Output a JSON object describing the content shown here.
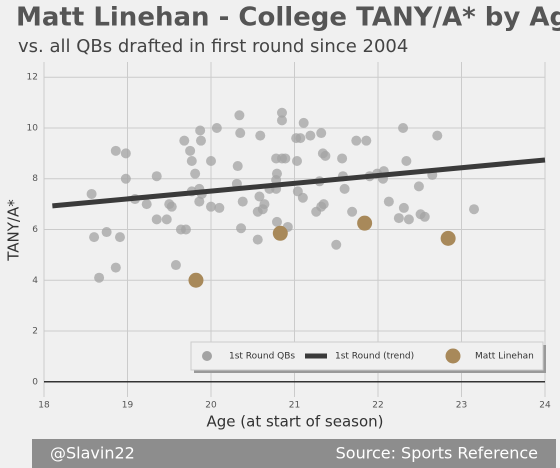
{
  "chart_data": {
    "type": "scatter",
    "title": "Matt Linehan - College TANY/A* by Age",
    "subtitle": "vs. all QBs drafted in first round since 2004",
    "x_label": "Age (at start of season)",
    "y_label": "TANY/A*",
    "credit": "@Slavin22",
    "source": "Source: Sports Reference",
    "xlim": [
      18,
      24
    ],
    "xticks": [
      18,
      19,
      20,
      21,
      22,
      23,
      24
    ],
    "ylim": [
      -0.6,
      12.6
    ],
    "yticks": [
      0,
      2,
      4,
      6,
      8,
      10,
      12
    ],
    "grid": true,
    "legend": "lower right",
    "series": [
      {
        "name": "1st Round QBs",
        "type": "scatter",
        "color": "#a3a3a3",
        "x": [
          18.57,
          18.6,
          18.66,
          18.75,
          18.86,
          18.91,
          18.86,
          18.98,
          18.98,
          19.09,
          19.23,
          19.35,
          19.35,
          19.47,
          19.5,
          19.53,
          19.58,
          19.64,
          19.68,
          19.7,
          19.75,
          19.77,
          19.77,
          19.81,
          19.86,
          19.86,
          19.89,
          19.87,
          19.88,
          20.0,
          20.0,
          20.07,
          20.1,
          20.32,
          20.34,
          20.35,
          20.31,
          20.36,
          20.38,
          20.56,
          20.58,
          20.59,
          20.56,
          20.62,
          20.64,
          20.7,
          20.78,
          20.79,
          20.78,
          20.78,
          20.79,
          20.85,
          20.85,
          20.85,
          20.89,
          20.92,
          21.02,
          21.07,
          21.03,
          21.04,
          21.1,
          21.11,
          21.19,
          21.26,
          21.3,
          21.32,
          21.32,
          21.34,
          21.37,
          21.35,
          21.5,
          21.57,
          21.58,
          21.6,
          21.69,
          21.74,
          21.86,
          21.9,
          21.99,
          22.07,
          22.06,
          22.13,
          22.25,
          22.3,
          22.31,
          22.34,
          22.37,
          22.49,
          22.51,
          22.56,
          22.65,
          22.71,
          23.15
        ],
        "values": [
          7.4,
          5.7,
          4.1,
          5.9,
          9.1,
          5.7,
          4.5,
          9.0,
          8.0,
          7.2,
          7.0,
          8.1,
          6.4,
          6.4,
          7.0,
          6.9,
          4.6,
          6.0,
          9.5,
          6.0,
          9.1,
          8.7,
          7.5,
          8.2,
          7.1,
          7.6,
          7.4,
          9.9,
          9.5,
          8.7,
          6.9,
          10.0,
          6.85,
          8.5,
          10.5,
          9.8,
          7.8,
          6.05,
          7.1,
          5.6,
          7.3,
          9.7,
          6.7,
          6.8,
          7.0,
          7.6,
          8.8,
          8.2,
          7.95,
          7.6,
          6.3,
          10.6,
          10.3,
          8.8,
          8.8,
          6.1,
          9.6,
          9.6,
          8.7,
          7.5,
          7.25,
          10.2,
          9.7,
          6.7,
          7.9,
          9.8,
          6.9,
          9.0,
          8.9,
          7.0,
          5.4,
          8.8,
          8.1,
          7.6,
          6.7,
          9.5,
          9.5,
          8.1,
          8.2,
          8.3,
          8.0,
          7.1,
          6.45,
          10.0,
          6.85,
          8.7,
          6.4,
          7.7,
          6.6,
          6.5,
          8.15,
          9.7,
          6.8
        ]
      },
      {
        "name": "1st Round (trend)",
        "type": "line",
        "color": "#3a3a3a",
        "x": [
          18.1,
          24
        ],
        "values": [
          6.93,
          8.74
        ]
      },
      {
        "name": "Matt Linehan",
        "type": "scatter",
        "color": "#a8895a",
        "x": [
          19.82,
          20.83,
          21.84,
          22.84
        ],
        "values": [
          4.0,
          5.85,
          6.25,
          5.65
        ]
      }
    ]
  }
}
